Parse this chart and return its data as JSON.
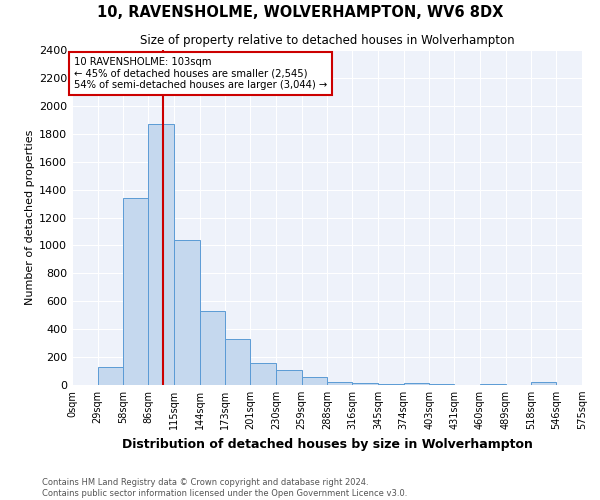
{
  "title": "10, RAVENSHOLME, WOLVERHAMPTON, WV6 8DX",
  "subtitle": "Size of property relative to detached houses in Wolverhampton",
  "xlabel": "Distribution of detached houses by size in Wolverhampton",
  "ylabel": "Number of detached properties",
  "footer1": "Contains HM Land Registry data © Crown copyright and database right 2024.",
  "footer2": "Contains public sector information licensed under the Open Government Licence v3.0.",
  "annotation_line1": "10 RAVENSHOLME: 103sqm",
  "annotation_line2": "← 45% of detached houses are smaller (2,545)",
  "annotation_line3": "54% of semi-detached houses are larger (3,044) →",
  "bar_color": "#c5d8ee",
  "bar_edge_color": "#5b9bd5",
  "vline_color": "#cc0000",
  "vline_x": 103,
  "annotation_box_color": "#cc0000",
  "plot_bg_color": "#eef2fa",
  "bins": [
    0,
    29,
    58,
    86,
    115,
    144,
    173,
    201,
    230,
    259,
    288,
    316,
    345,
    374,
    403,
    431,
    460,
    489,
    518,
    546,
    575
  ],
  "counts": [
    0,
    130,
    1340,
    1870,
    1040,
    530,
    330,
    160,
    110,
    60,
    25,
    15,
    10,
    12,
    5,
    0,
    10,
    0,
    20,
    0
  ],
  "ylim": [
    0,
    2400
  ],
  "yticks": [
    0,
    200,
    400,
    600,
    800,
    1000,
    1200,
    1400,
    1600,
    1800,
    2000,
    2200,
    2400
  ]
}
